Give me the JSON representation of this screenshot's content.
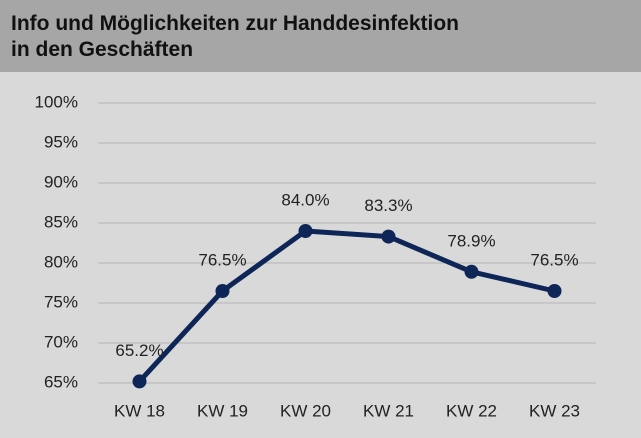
{
  "chart_data": {
    "type": "line",
    "title": "Info und Möglichkeiten zur Handdesinfektion\nin den Geschäften",
    "categories": [
      "KW 18",
      "KW 19",
      "KW 20",
      "KW 21",
      "KW 22",
      "KW 23"
    ],
    "values": [
      65.2,
      76.5,
      84.0,
      83.3,
      78.9,
      76.5
    ],
    "value_labels": [
      "65.2%",
      "76.5%",
      "84.0%",
      "83.3%",
      "78.9%",
      "76.5%"
    ],
    "color": "#0e2657",
    "ylim": [
      65,
      100
    ],
    "yticks": [
      {
        "value": 65,
        "label": "65%"
      },
      {
        "value": 70,
        "label": "70%"
      },
      {
        "value": 75,
        "label": "75%"
      },
      {
        "value": 80,
        "label": "80%"
      },
      {
        "value": 85,
        "label": "85%"
      },
      {
        "value": 90,
        "label": "90%"
      },
      {
        "value": 95,
        "label": "95%"
      },
      {
        "value": 100,
        "label": "100%"
      }
    ],
    "grid": true
  }
}
